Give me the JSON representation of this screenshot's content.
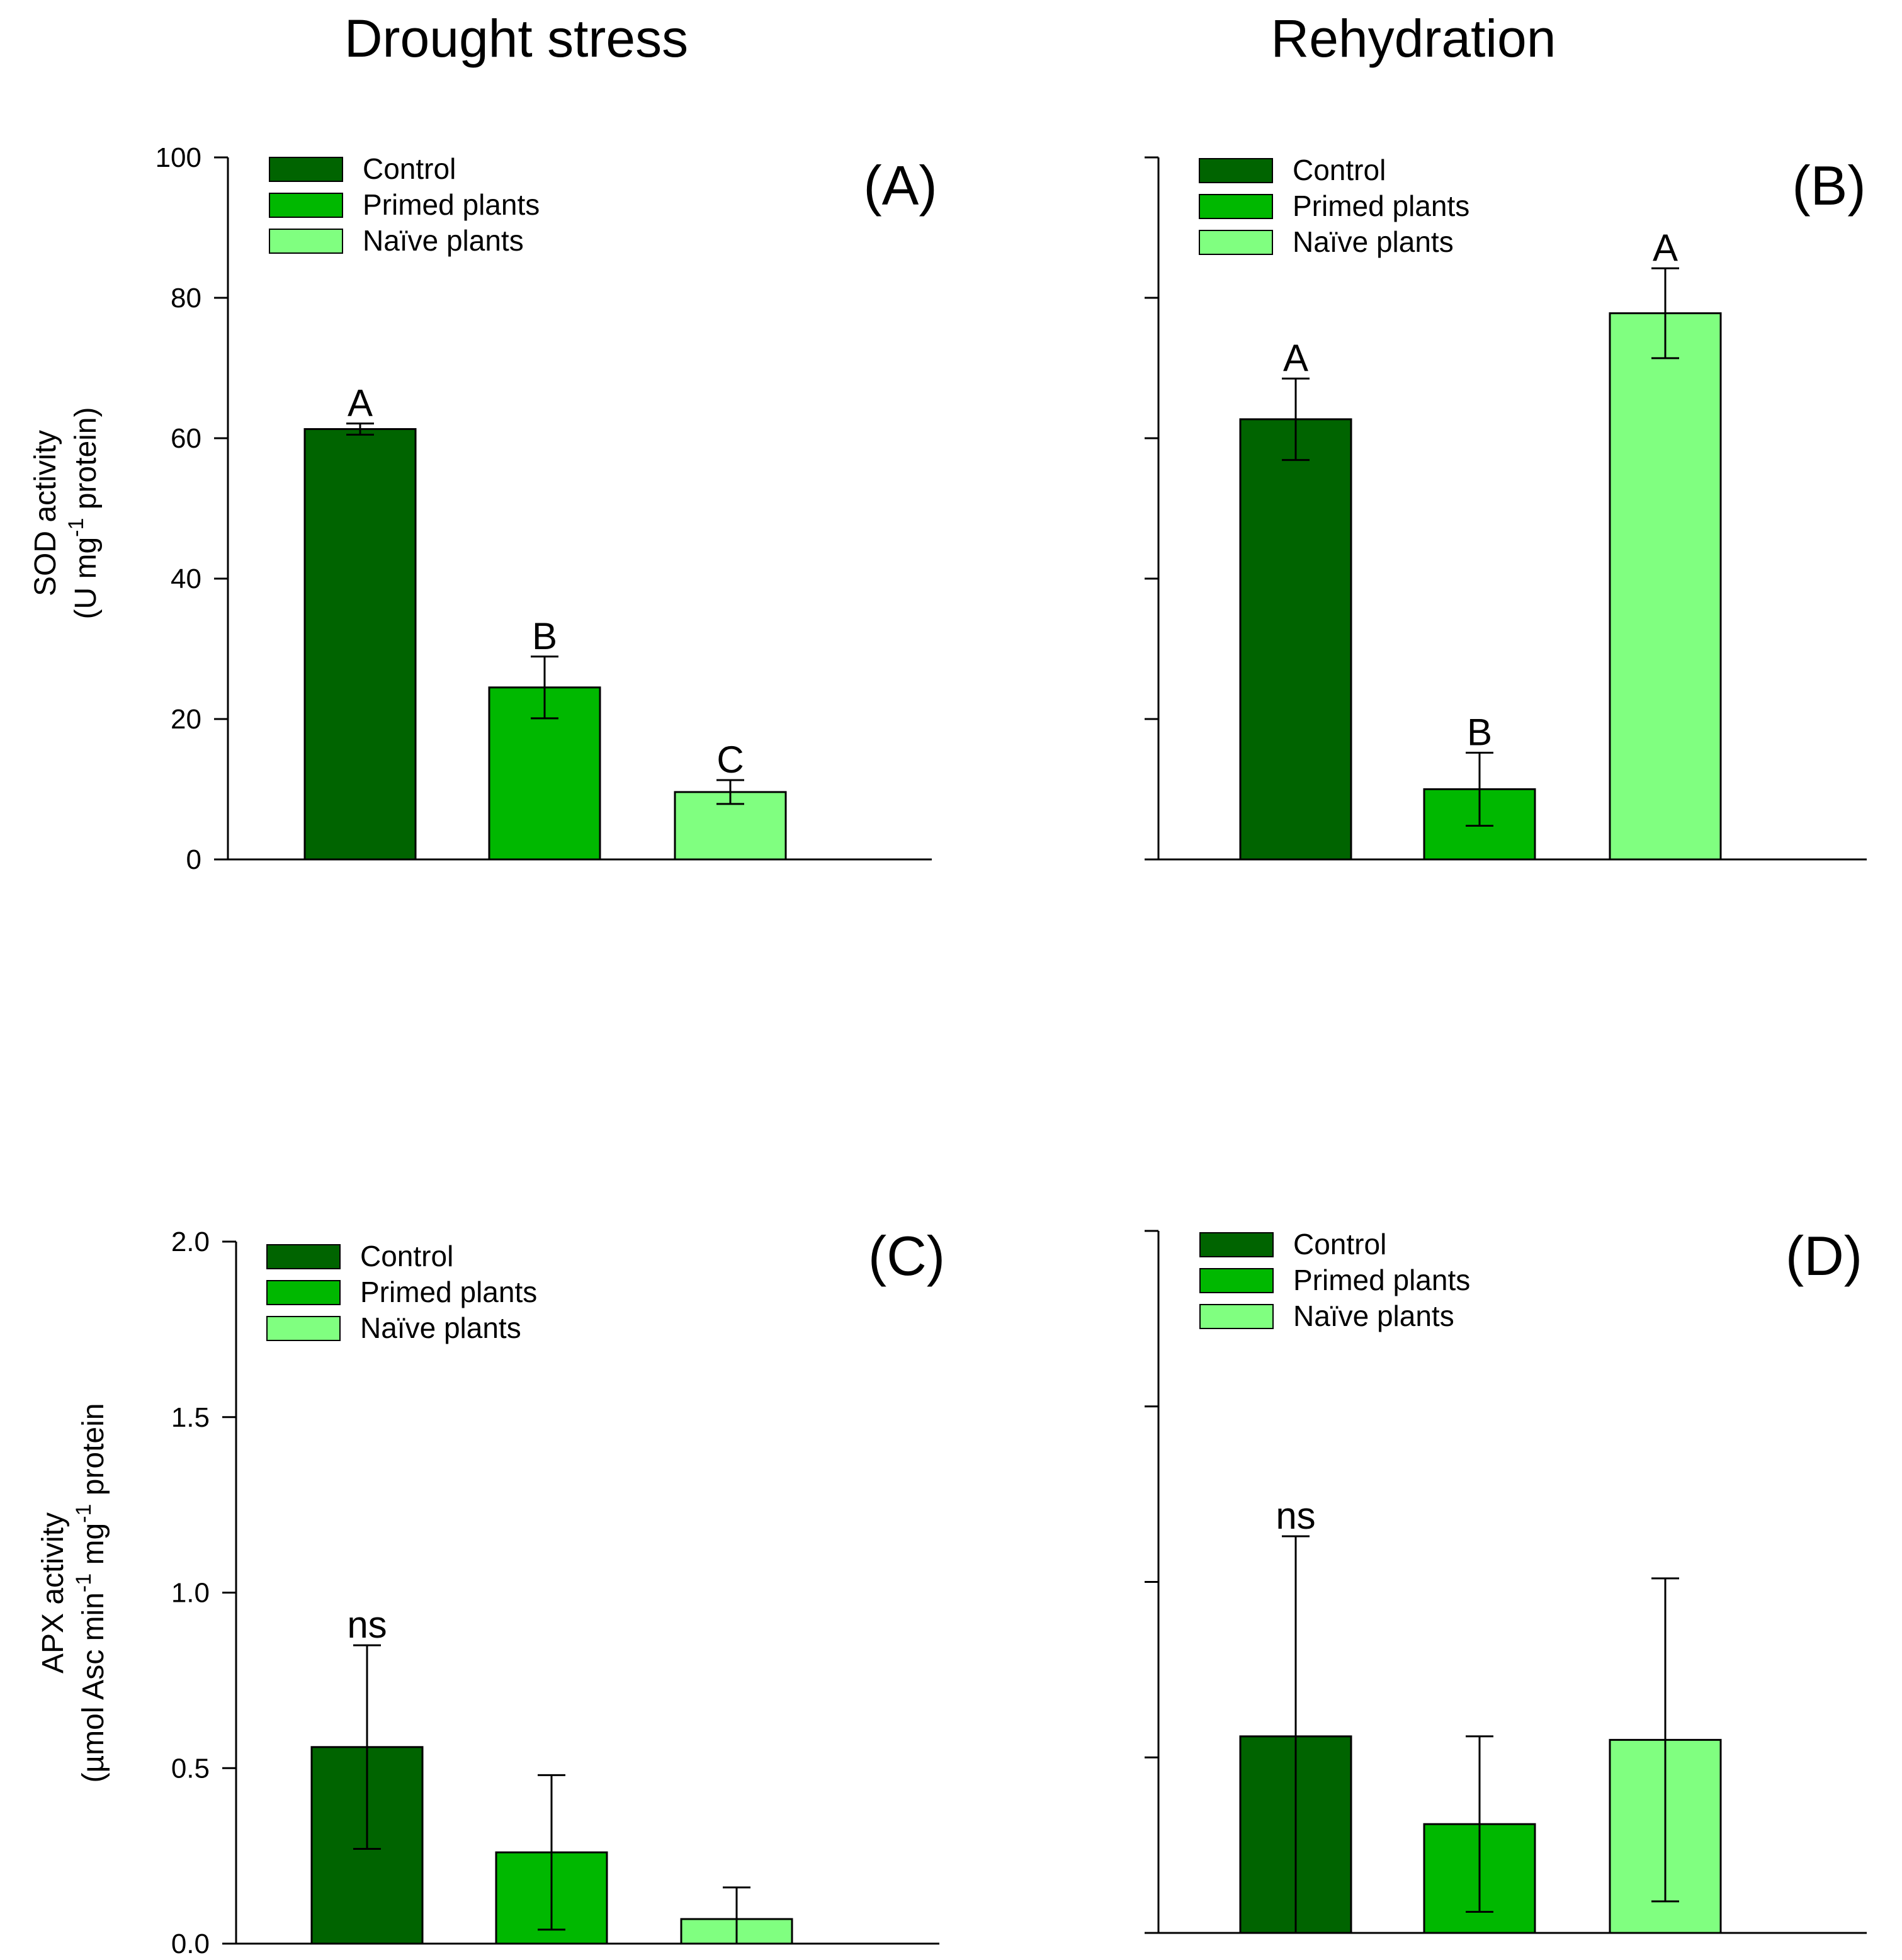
{
  "column_titles": [
    "Drought stress",
    "Rehydration"
  ],
  "colors": {
    "control": "#006400",
    "primed": "#00b800",
    "naive": "#80ff80",
    "axis": "#000000"
  },
  "legend": [
    "Control",
    "Primed plants",
    "Naïve plants"
  ],
  "ylabels": {
    "sod": {
      "line1": "SOD activity",
      "line2_a": "(U mg",
      "line2_sup": "-1",
      "line2_b": " protein)"
    },
    "apx": {
      "line1": "APX activity",
      "line2_a": "(µmol Asc min",
      "line2_sup1": "-1",
      "line2_mid": " mg",
      "line2_sup2": "-1",
      "line2_b": " protein"
    }
  },
  "chart_data": [
    {
      "type": "bar",
      "panel": "(A)",
      "title": "Drought stress",
      "ylabel": "SOD activity (U mg-1 protein)",
      "ylim": [
        0,
        100
      ],
      "yticks": [
        "0",
        "20",
        "40",
        "60",
        "80",
        "100"
      ],
      "categories": [
        "Control",
        "Primed plants",
        "Naïve plants"
      ],
      "values": [
        61.3,
        24.5,
        9.6
      ],
      "errors": [
        0.8,
        4.4,
        1.7
      ],
      "letters": [
        "A",
        "B",
        "C"
      ]
    },
    {
      "type": "bar",
      "panel": "(B)",
      "title": "Rehydration",
      "ylabel": "SOD activity (U mg-1 protein)",
      "ylim": [
        0,
        100
      ],
      "yticks": [
        "",
        "",
        "",
        "",
        "",
        ""
      ],
      "categories": [
        "Control",
        "Primed plants",
        "Naïve plants"
      ],
      "values": [
        62.7,
        10.0,
        77.8
      ],
      "errors": [
        5.8,
        5.2,
        6.4
      ],
      "letters": [
        "A",
        "B",
        "A"
      ]
    },
    {
      "type": "bar",
      "panel": "(C)",
      "title": "Drought stress",
      "ylabel": "APX activity (µmol Asc min-1 mg-1 protein)",
      "ylim": [
        0,
        2.0
      ],
      "yticks": [
        "0.0",
        "0.5",
        "1.0",
        "1.5",
        "2.0"
      ],
      "categories": [
        "Control",
        "Primed plants",
        "Naïve plants"
      ],
      "values": [
        0.56,
        0.26,
        0.07
      ],
      "errors": [
        0.29,
        0.22,
        0.09
      ],
      "letters": [
        "ns",
        "",
        ""
      ]
    },
    {
      "type": "bar",
      "panel": "(D)",
      "title": "Rehydration",
      "ylabel": "APX activity (µmol Asc min-1 mg-1 protein)",
      "ylim": [
        0,
        2.0
      ],
      "yticks": [
        "",
        "",
        "",
        "",
        ""
      ],
      "categories": [
        "Control",
        "Primed plants",
        "Naïve plants"
      ],
      "values": [
        0.56,
        0.31,
        0.55
      ],
      "errors": [
        0.57,
        0.25,
        0.46
      ],
      "letters": [
        "ns",
        "",
        ""
      ]
    }
  ]
}
